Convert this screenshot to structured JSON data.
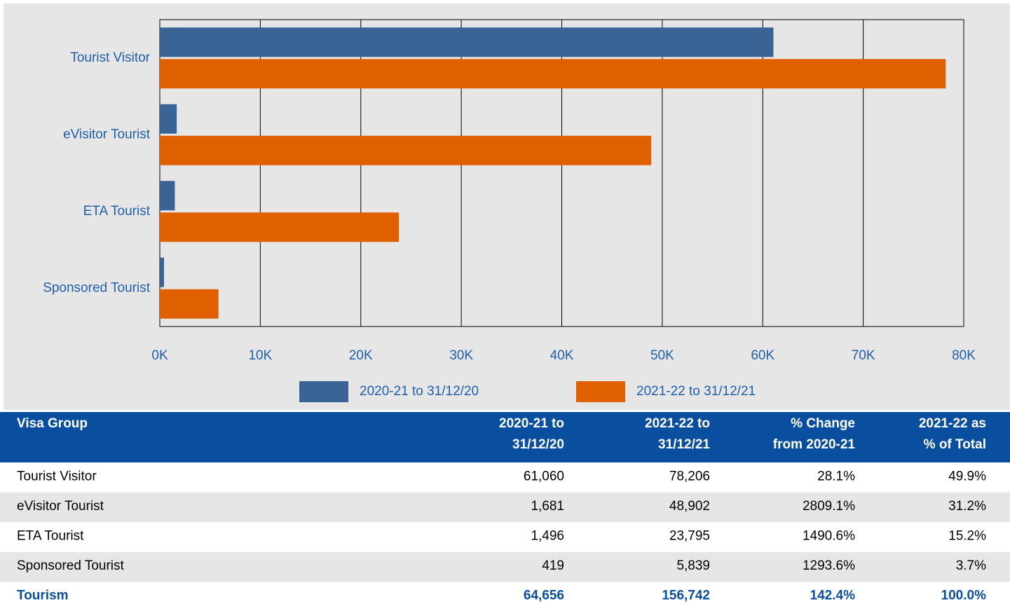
{
  "chart_data": {
    "type": "hbar",
    "categories": [
      "Tourist Visitor",
      "eVisitor Tourist",
      "ETA Tourist",
      "Sponsored Tourist"
    ],
    "series": [
      {
        "name": "2020-21 to 31/12/20",
        "color": "#3b6496",
        "values": [
          61060,
          1681,
          1496,
          419
        ]
      },
      {
        "name": "2021-22 to 31/12/21",
        "color": "#e06000",
        "values": [
          78206,
          48902,
          23795,
          5839
        ]
      }
    ],
    "xlim": [
      0,
      80000
    ],
    "xticks": [
      {
        "value": 0,
        "label": "0K"
      },
      {
        "value": 10000,
        "label": "10K"
      },
      {
        "value": 20000,
        "label": "20K"
      },
      {
        "value": 30000,
        "label": "30K"
      },
      {
        "value": 40000,
        "label": "40K"
      },
      {
        "value": 50000,
        "label": "50K"
      },
      {
        "value": 60000,
        "label": "60K"
      },
      {
        "value": 70000,
        "label": "70K"
      },
      {
        "value": 80000,
        "label": "80K"
      }
    ],
    "grid": true,
    "legend": "bottom"
  },
  "table": {
    "header": [
      [
        "Visa Group"
      ],
      [
        "2020-21 to",
        "31/12/20"
      ],
      [
        "2021-22 to",
        "31/12/21"
      ],
      [
        "% Change",
        "from 2020-21"
      ],
      [
        "2021-22 as",
        "% of Total"
      ]
    ],
    "rows": [
      [
        "Tourist Visitor",
        "61,060",
        "78,206",
        "28.1%",
        "49.9%"
      ],
      [
        "eVisitor Tourist",
        "1,681",
        "48,902",
        "2809.1%",
        "31.2%"
      ],
      [
        "ETA Tourist",
        "1,496",
        "23,795",
        "1490.6%",
        "15.2%"
      ],
      [
        "Sponsored Tourist",
        "419",
        "5,839",
        "1293.6%",
        "3.7%"
      ]
    ],
    "total": [
      "Tourism",
      "64,656",
      "156,742",
      "142.4%",
      "100.0%"
    ]
  }
}
